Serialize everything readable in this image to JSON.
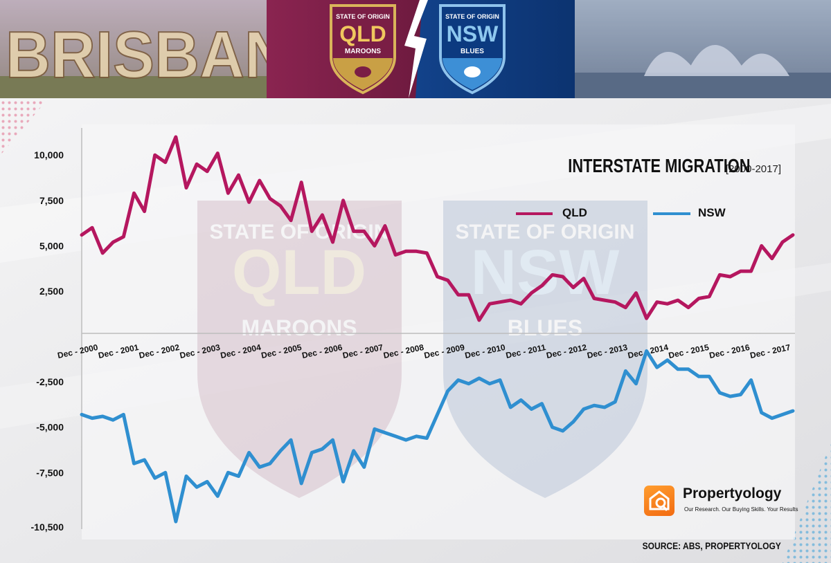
{
  "banner": {
    "city_text": "BRISBANE",
    "qld_badge": {
      "top": "STATE OF ORIGIN",
      "name": "QLD",
      "bottom": "MAROONS"
    },
    "nsw_badge": {
      "top": "STATE OF ORIGIN",
      "name": "NSW",
      "bottom": "BLUES"
    }
  },
  "watermark": {
    "qld": {
      "top": "STATE OF ORIGIN",
      "name": "QLD",
      "bottom": "MAROONS"
    },
    "nsw": {
      "top": "STATE OF ORIGIN",
      "name": "NSW",
      "bottom": "BLUES"
    }
  },
  "brand": {
    "name": "Propertyology",
    "tagline": "Our Research. Our Buying Skills. Your Results"
  },
  "colors": {
    "qld": "#b5175f",
    "nsw": "#2f8fd0",
    "qld_banner": "#7a1e45",
    "nsw_banner": "#0f3a7a",
    "accent": "#f7941d"
  },
  "chart_data": {
    "type": "line",
    "title": "INTERSTATE MIGRATION",
    "subtitle": "[2000-2017]",
    "source": "SOURCE: ABS, PROPERTYOLOGY",
    "legend_position": "top-right",
    "grid": false,
    "ylim": [
      -10500,
      11000
    ],
    "y_ticks": [
      {
        "value": 10000,
        "label": "10,000"
      },
      {
        "value": 7500,
        "label": "7,500"
      },
      {
        "value": 5000,
        "label": "5,000"
      },
      {
        "value": 2500,
        "label": "2,500"
      },
      {
        "value": -2500,
        "label": "-2,500"
      },
      {
        "value": -5000,
        "label": "-5,000"
      },
      {
        "value": -7500,
        "label": "-7,500"
      },
      {
        "value": -10500,
        "label": "-10,500"
      }
    ],
    "x_labels": [
      "Dec - 2000",
      "Dec - 2001",
      "Dec - 2002",
      "Dec - 2003",
      "Dec - 2004",
      "Dec - 2005",
      "Dec - 2006",
      "Dec - 2007",
      "Dec - 2008",
      "Dec - 2009",
      "Dec - 2010",
      "Dec - 2011",
      "Dec - 2012",
      "Dec - 2013",
      "Dec - 2014",
      "Dec - 2015",
      "Dec - 2016",
      "Dec - 2017"
    ],
    "series": [
      {
        "name": "QLD",
        "color": "#b5175f",
        "values": [
          5600,
          6000,
          4600,
          5200,
          5500,
          7900,
          6900,
          10000,
          9600,
          11000,
          8200,
          9500,
          9100,
          10100,
          7900,
          8900,
          7400,
          8600,
          7600,
          7200,
          6400,
          8500,
          5800,
          6700,
          5200,
          7500,
          5800,
          5800,
          5000,
          6100,
          4500,
          4700,
          4700,
          4600,
          3300,
          3100,
          2300,
          2300,
          900,
          1800,
          1900,
          2000,
          1800,
          2400,
          2800,
          3400,
          3300,
          2700,
          3200,
          2100,
          2000,
          1900,
          1600,
          2400,
          1000,
          1900,
          1800,
          2000,
          1600,
          2100,
          2200,
          3400,
          3300,
          3600,
          3600,
          5000,
          4300,
          5200,
          5600
        ]
      },
      {
        "name": "NSW",
        "color": "#2f8fd0",
        "values": [
          -4300,
          -4500,
          -4400,
          -4600,
          -4300,
          -7000,
          -6800,
          -7800,
          -7500,
          -10200,
          -7700,
          -8300,
          -8000,
          -8800,
          -7500,
          -7700,
          -6400,
          -7200,
          -7000,
          -6300,
          -5700,
          -8100,
          -6400,
          -6200,
          -5700,
          -8000,
          -6300,
          -7200,
          -5100,
          -5300,
          -5500,
          -5700,
          -5500,
          -5600,
          -4300,
          -3000,
          -2400,
          -2600,
          -2300,
          -2600,
          -2400,
          -3900,
          -3500,
          -4000,
          -3700,
          -5000,
          -5200,
          -4700,
          -4000,
          -3800,
          -3900,
          -3600,
          -1900,
          -2600,
          -800,
          -1700,
          -1300,
          -1800,
          -1800,
          -2200,
          -2200,
          -3100,
          -3300,
          -3200,
          -2400,
          -4200,
          -4500,
          -4300,
          -4100
        ]
      }
    ]
  }
}
